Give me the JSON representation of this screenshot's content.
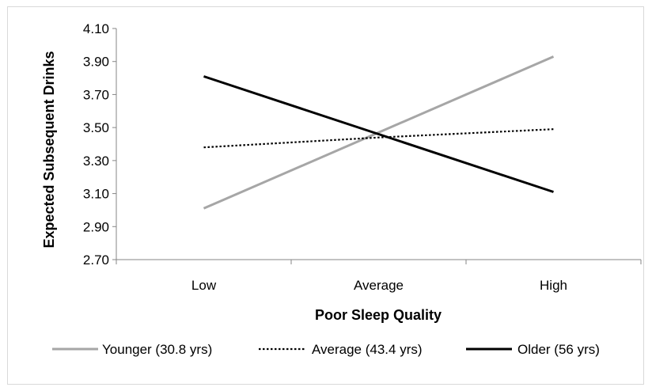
{
  "chart_data": {
    "type": "line",
    "title": "",
    "xlabel": "Poor Sleep Quality",
    "ylabel": "Expected Subsequent Drinks",
    "categories": [
      "Low",
      "Average",
      "High"
    ],
    "ylim": [
      2.7,
      4.1
    ],
    "yticks": [
      "2.70",
      "2.90",
      "3.10",
      "3.30",
      "3.50",
      "3.70",
      "3.90",
      "4.10"
    ],
    "grid": false,
    "legend_position": "bottom",
    "series": [
      {
        "name": "Younger (30.8 yrs)",
        "values": [
          3.01,
          3.47,
          3.93
        ],
        "color": "#a6a6a6",
        "style": "solid"
      },
      {
        "name": "Average (43.4 yrs)",
        "values": [
          3.38,
          3.44,
          3.49
        ],
        "color": "#000000",
        "style": "dotted"
      },
      {
        "name": "Older (56 yrs)",
        "values": [
          3.81,
          3.46,
          3.11
        ],
        "color": "#000000",
        "style": "solid"
      }
    ]
  }
}
